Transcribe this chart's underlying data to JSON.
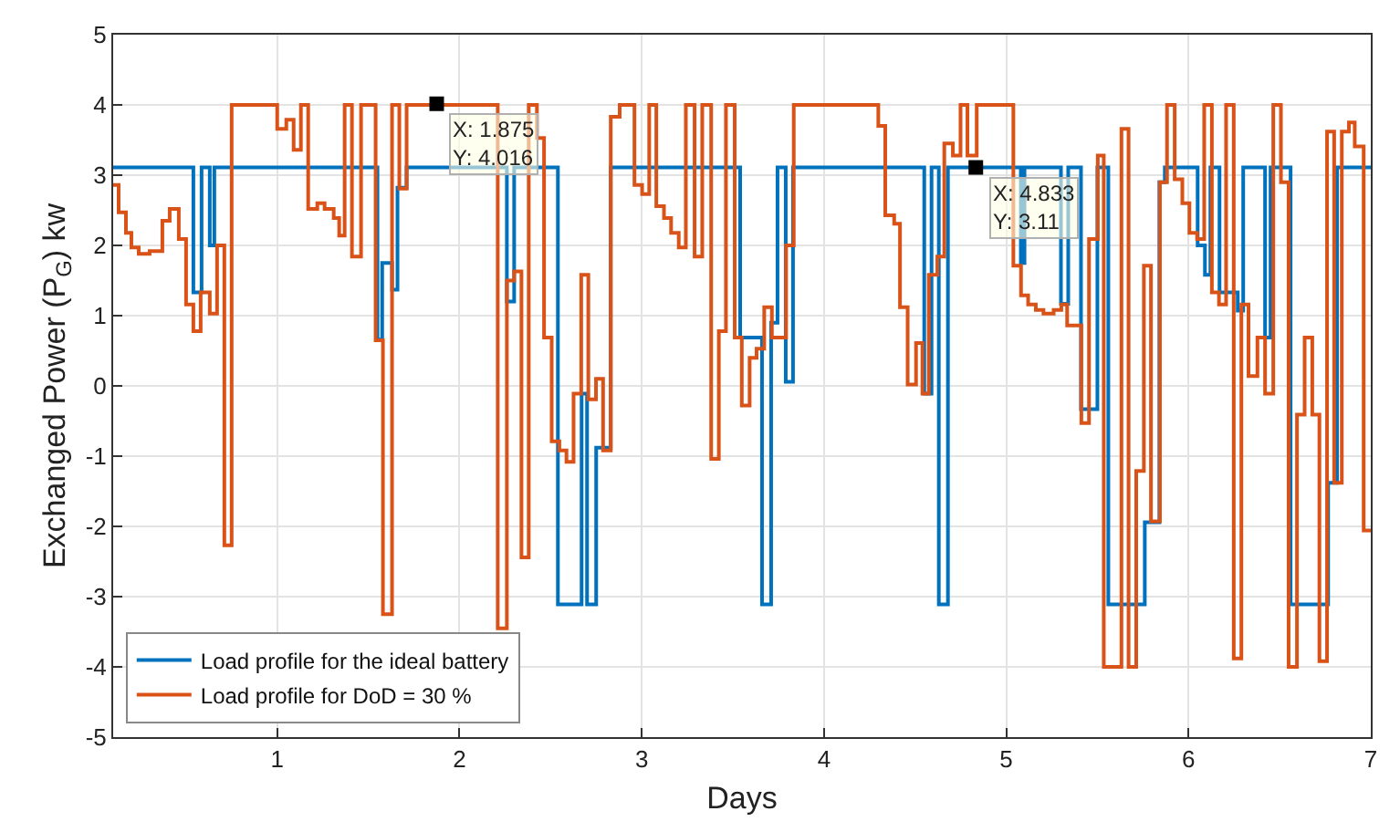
{
  "chart_data": {
    "type": "step",
    "xlabel": "Days",
    "ylabel": "Exchanged Power (P$_{G}$) kw",
    "xlim": [
      0.1,
      7
    ],
    "xticks": [
      1,
      2,
      3,
      4,
      5,
      6,
      7
    ],
    "ylim": [
      -5,
      5
    ],
    "yticks": [
      -5,
      -4,
      -3,
      -2,
      -1,
      0,
      1,
      2,
      3,
      4,
      5
    ],
    "grid": true,
    "legend": "bottom left",
    "line_style": "solid",
    "series": [
      {
        "name": "Load profile for the ideal battery",
        "color": "#0072bd",
        "x": [
          0.1,
          0.54,
          0.585,
          0.63,
          0.655,
          1.55,
          1.576,
          1.63,
          1.66,
          1.71,
          2.26,
          2.3,
          2.54,
          2.67,
          2.7,
          2.75,
          2.83,
          3.54,
          3.66,
          3.71,
          3.745,
          3.79,
          3.83,
          4.55,
          4.59,
          4.63,
          4.68,
          5.08,
          5.1,
          5.3,
          5.34,
          5.41,
          5.5,
          5.56,
          5.76,
          5.84,
          5.87,
          6.05,
          6.09,
          6.12,
          6.17,
          6.27,
          6.3,
          6.42,
          6.45,
          6.56,
          6.766,
          6.815,
          7.0
        ],
        "values": [
          3.11,
          1.33,
          3.11,
          2.0,
          3.11,
          0.66,
          1.75,
          1.37,
          2.82,
          3.11,
          1.2,
          3.11,
          -3.11,
          -0.11,
          -3.11,
          -0.88,
          3.11,
          0.69,
          -3.11,
          0.9,
          3.11,
          0.06,
          3.11,
          -0.11,
          3.11,
          -3.11,
          3.11,
          1.75,
          3.11,
          1.17,
          3.11,
          -0.33,
          3.11,
          -3.11,
          -1.94,
          2.9,
          3.11,
          2.0,
          1.58,
          3.11,
          1.33,
          1.07,
          3.11,
          0.69,
          3.11,
          -3.11,
          -1.38,
          3.11,
          3.11
        ]
      },
      {
        "name": "Load profile for DoD = 30 %",
        "color": "#d95319",
        "x": [
          0.1,
          0.13,
          0.17,
          0.2,
          0.24,
          0.3,
          0.37,
          0.41,
          0.46,
          0.5,
          0.54,
          0.58,
          0.63,
          0.67,
          0.71,
          0.75,
          1.0,
          1.05,
          1.09,
          1.13,
          1.17,
          1.22,
          1.26,
          1.31,
          1.34,
          1.37,
          1.41,
          1.46,
          1.54,
          1.58,
          1.63,
          1.67,
          1.71,
          2.21,
          2.26,
          2.3,
          2.34,
          2.38,
          2.425,
          2.464,
          2.506,
          2.548,
          2.587,
          2.626,
          2.668,
          2.707,
          2.749,
          2.788,
          2.83,
          2.879,
          2.96,
          3.002,
          3.041,
          3.08,
          3.122,
          3.161,
          3.203,
          3.242,
          3.29,
          3.332,
          3.381,
          3.423,
          3.462,
          3.51,
          3.549,
          3.592,
          3.63,
          3.672,
          3.714,
          3.792,
          3.834,
          4.298,
          4.336,
          4.385,
          4.417,
          4.459,
          4.505,
          4.54,
          4.575,
          4.622,
          4.66,
          4.707,
          4.749,
          4.787,
          4.838,
          5.039,
          5.081,
          5.12,
          5.162,
          5.204,
          5.26,
          5.302,
          5.334,
          5.412,
          5.454,
          5.502,
          5.535,
          5.632,
          5.671,
          5.713,
          5.755,
          5.794,
          5.843,
          5.882,
          5.924,
          5.966,
          6.005,
          6.047,
          6.086,
          6.128,
          6.167,
          6.206,
          6.248,
          6.29,
          6.329,
          6.378,
          6.42,
          6.465,
          6.507,
          6.549,
          6.595,
          6.637,
          6.679,
          6.718,
          6.76,
          6.799,
          6.841,
          6.88,
          6.912,
          6.961,
          7.0
        ],
        "values": [
          2.86,
          2.47,
          2.18,
          1.97,
          1.88,
          1.92,
          2.35,
          2.52,
          2.09,
          1.16,
          0.78,
          1.33,
          1.03,
          2.0,
          -2.27,
          4.0,
          3.66,
          3.79,
          3.36,
          4.0,
          2.52,
          2.6,
          2.52,
          2.39,
          2.14,
          4.0,
          1.84,
          4.0,
          0.65,
          -3.25,
          4.0,
          2.81,
          4.0,
          -3.45,
          1.5,
          1.63,
          -2.44,
          4.0,
          3.53,
          0.69,
          -0.79,
          -0.92,
          -1.08,
          -0.11,
          1.58,
          -0.19,
          0.1,
          -0.92,
          3.83,
          4.0,
          2.86,
          2.73,
          4.0,
          2.56,
          2.39,
          2.18,
          1.97,
          4.0,
          1.84,
          4.0,
          -1.04,
          0.78,
          4.0,
          0.69,
          -0.28,
          0.4,
          0.53,
          1.12,
          0.69,
          2.0,
          4.0,
          3.7,
          2.43,
          2.31,
          1.12,
          0.02,
          0.61,
          -0.11,
          1.58,
          1.84,
          3.45,
          3.28,
          4.0,
          3.28,
          4.0,
          1.71,
          1.29,
          1.16,
          1.08,
          1.03,
          1.08,
          1.16,
          0.86,
          -0.53,
          2.09,
          3.28,
          -4.0,
          3.66,
          -4.0,
          -1.21,
          1.71,
          -1.93,
          2.9,
          4.0,
          2.94,
          2.6,
          2.18,
          2.09,
          4.0,
          1.33,
          1.16,
          4.0,
          -3.88,
          1.16,
          0.14,
          0.69,
          -0.11,
          4.0,
          2.9,
          -4.0,
          -0.41,
          0.69,
          -0.41,
          -3.92,
          3.62,
          -1.38,
          3.62,
          3.75,
          3.41,
          -2.06,
          -2.06
        ]
      }
    ],
    "annotations": [
      {
        "text": "X: 1.875\nY: 4.016",
        "x": 1.875,
        "y": 4.016
      },
      {
        "text": "X: 4.833\nY: 3.11",
        "x": 4.833,
        "y": 3.11
      }
    ]
  }
}
